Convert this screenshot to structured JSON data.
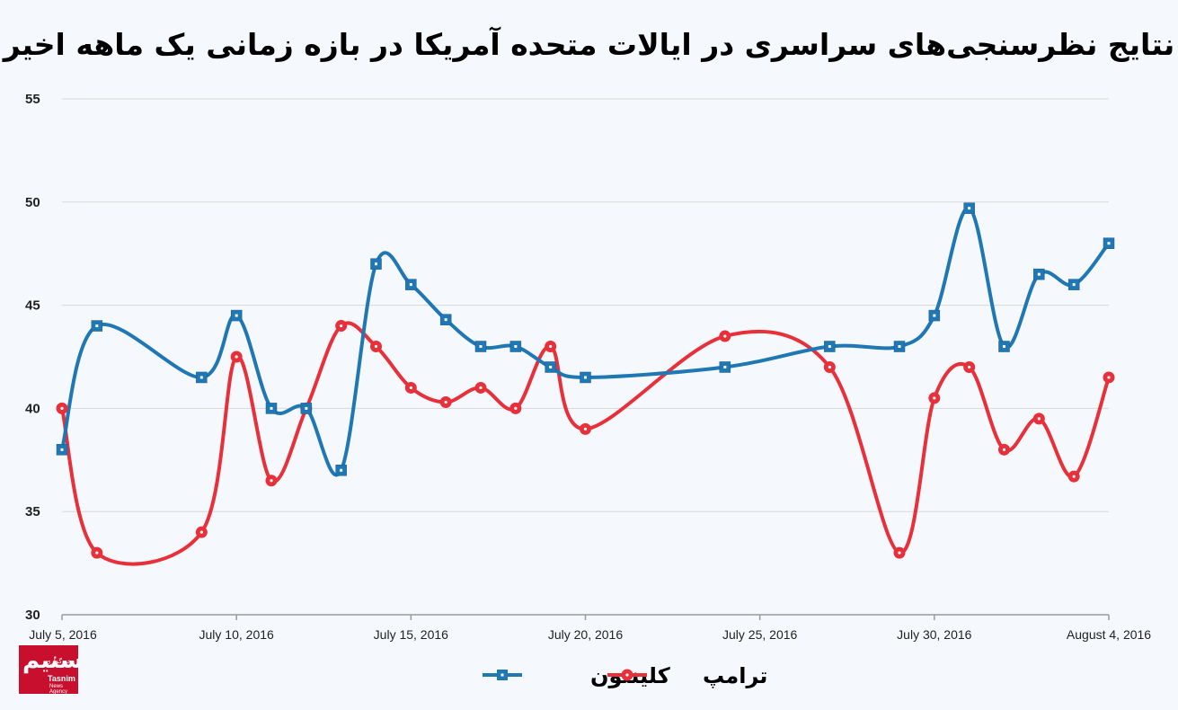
{
  "chart_data": {
    "type": "line",
    "title": "نتایج نظرسنجی‌های سراسری در ایالات متحده آمریکا در بازه زمانی یک ماهه اخیر",
    "ylim": [
      30,
      55
    ],
    "yticks": [
      30,
      35,
      40,
      45,
      50,
      55
    ],
    "x_ticks": [
      {
        "day": 0,
        "label": "July 5, 2016"
      },
      {
        "day": 5,
        "label": "July 10, 2016"
      },
      {
        "day": 10,
        "label": "July 15, 2016"
      },
      {
        "day": 15,
        "label": "July 20, 2016"
      },
      {
        "day": 20,
        "label": "July 25, 2016"
      },
      {
        "day": 25,
        "label": "July 30, 2016"
      },
      {
        "day": 30,
        "label": "August 4, 2016"
      }
    ],
    "grid": true,
    "legend_position": "bottom",
    "series": [
      {
        "name": "کلینتون",
        "color": "#1f77b4",
        "marker": "square",
        "points": [
          {
            "x": "2016-07-05",
            "y": 38
          },
          {
            "x": "2016-07-06",
            "y": 44
          },
          {
            "x": "2016-07-09",
            "y": 41.5
          },
          {
            "x": "2016-07-10",
            "y": 44.5
          },
          {
            "x": "2016-07-11",
            "y": 40
          },
          {
            "x": "2016-07-12",
            "y": 40
          },
          {
            "x": "2016-07-13",
            "y": 37
          },
          {
            "x": "2016-07-14",
            "y": 47
          },
          {
            "x": "2016-07-15",
            "y": 46
          },
          {
            "x": "2016-07-16",
            "y": 44.3
          },
          {
            "x": "2016-07-17",
            "y": 43
          },
          {
            "x": "2016-07-18",
            "y": 43
          },
          {
            "x": "2016-07-19",
            "y": 42
          },
          {
            "x": "2016-07-20",
            "y": 41.5
          },
          {
            "x": "2016-07-24",
            "y": 42
          },
          {
            "x": "2016-07-27",
            "y": 43
          },
          {
            "x": "2016-07-29",
            "y": 43
          },
          {
            "x": "2016-07-30",
            "y": 44.5
          },
          {
            "x": "2016-07-31",
            "y": 49.7
          },
          {
            "x": "2016-08-01",
            "y": 43
          },
          {
            "x": "2016-08-02",
            "y": 46.5
          },
          {
            "x": "2016-08-03",
            "y": 46
          },
          {
            "x": "2016-08-04",
            "y": 48
          }
        ]
      },
      {
        "name": "ترامپ",
        "color": "#e8303a",
        "marker": "circle",
        "points": [
          {
            "x": "2016-07-05",
            "y": 40
          },
          {
            "x": "2016-07-06",
            "y": 33
          },
          {
            "x": "2016-07-09",
            "y": 34
          },
          {
            "x": "2016-07-10",
            "y": 42.5
          },
          {
            "x": "2016-07-11",
            "y": 36.5
          },
          {
            "x": "2016-07-12",
            "y": 40
          },
          {
            "x": "2016-07-13",
            "y": 44
          },
          {
            "x": "2016-07-14",
            "y": 43
          },
          {
            "x": "2016-07-15",
            "y": 41
          },
          {
            "x": "2016-07-16",
            "y": 40.3
          },
          {
            "x": "2016-07-17",
            "y": 41
          },
          {
            "x": "2016-07-18",
            "y": 40
          },
          {
            "x": "2016-07-19",
            "y": 43
          },
          {
            "x": "2016-07-20",
            "y": 39
          },
          {
            "x": "2016-07-24",
            "y": 43.5
          },
          {
            "x": "2016-07-27",
            "y": 42
          },
          {
            "x": "2016-07-29",
            "y": 33
          },
          {
            "x": "2016-07-30",
            "y": 40.5
          },
          {
            "x": "2016-07-31",
            "y": 42
          },
          {
            "x": "2016-08-01",
            "y": 38
          },
          {
            "x": "2016-08-02",
            "y": 39.5
          },
          {
            "x": "2016-08-03",
            "y": 36.7
          },
          {
            "x": "2016-08-04",
            "y": 41.5
          }
        ]
      }
    ]
  },
  "logo": {
    "mark": "تسنیم",
    "small": "خبرگزاری",
    "brand": "Tasnim",
    "sub": "News Agency"
  }
}
